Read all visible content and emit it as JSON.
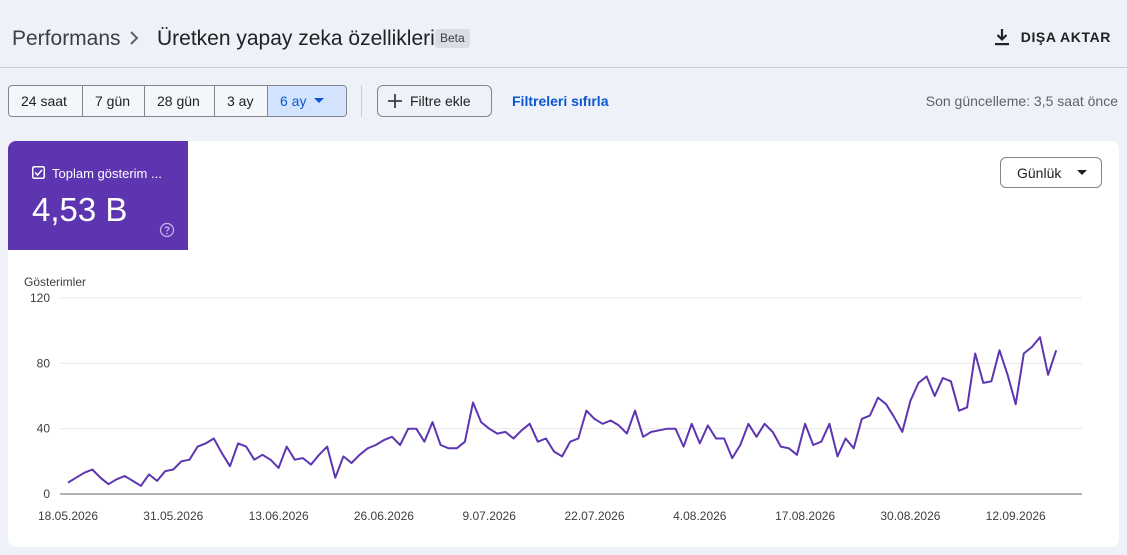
{
  "header": {
    "breadcrumb_root": "Performans",
    "breadcrumb_title": "Üretken yapay zeka özellikleri",
    "badge": "Beta",
    "export_label": "DIŞA AKTAR"
  },
  "toolbar": {
    "ranges": [
      "24 saat",
      "7 gün",
      "28 gün",
      "3 ay",
      "6 ay"
    ],
    "active_range": "6 ay",
    "add_filter_label": "Filtre ekle",
    "reset_filters_label": "Filtreleri sıfırla",
    "last_updated": "Son güncelleme: 3,5 saat önce"
  },
  "metric": {
    "label": "Toplam gösterim ...",
    "value": "4,53 B",
    "color": "#5e35b1"
  },
  "granularity": {
    "selected": "Günlük"
  },
  "colors": {
    "accent": "#0b57d0",
    "line": "#5e35b1",
    "metric_bg": "#5e35b1"
  },
  "chart_data": {
    "type": "line",
    "ylabel": "Gösterimler",
    "ylim": [
      0,
      120
    ],
    "yticks": [
      0,
      40,
      80,
      120
    ],
    "x_tick_labels": [
      "18.05.2026",
      "31.05.2026",
      "13.06.2026",
      "26.06.2026",
      "9.07.2026",
      "22.07.2026",
      "4.08.2026",
      "17.08.2026",
      "30.08.2026",
      "12.09.2026"
    ],
    "x_start": "2026-05-18",
    "x_step_days": 1,
    "series": [
      {
        "color": "#5e35b1",
        "values": [
          7,
          10,
          13,
          15,
          10,
          6,
          9,
          11,
          8,
          5,
          12,
          8,
          14,
          15,
          20,
          21,
          29,
          31,
          34,
          25,
          17,
          31,
          29,
          21,
          24,
          21,
          16,
          29,
          21,
          22,
          18,
          24,
          29,
          10,
          23,
          19,
          24,
          28,
          30,
          33,
          35,
          30,
          40,
          40,
          32,
          44,
          30,
          28,
          28,
          32,
          56,
          44,
          40,
          37,
          38,
          34,
          39,
          43,
          32,
          34,
          26,
          23,
          32,
          34,
          51,
          46,
          43,
          45,
          42,
          37,
          51,
          35,
          38,
          39,
          40,
          40,
          29,
          43,
          31,
          42,
          34,
          34,
          22,
          30,
          43,
          35,
          43,
          38,
          29,
          28,
          24,
          43,
          30,
          32,
          43,
          23,
          34,
          28,
          46,
          48,
          59,
          55,
          47,
          38,
          57,
          68,
          72,
          60,
          71,
          69,
          51,
          53,
          86,
          68,
          69,
          88,
          73,
          55,
          86,
          90,
          96,
          73,
          88
        ]
      }
    ]
  }
}
